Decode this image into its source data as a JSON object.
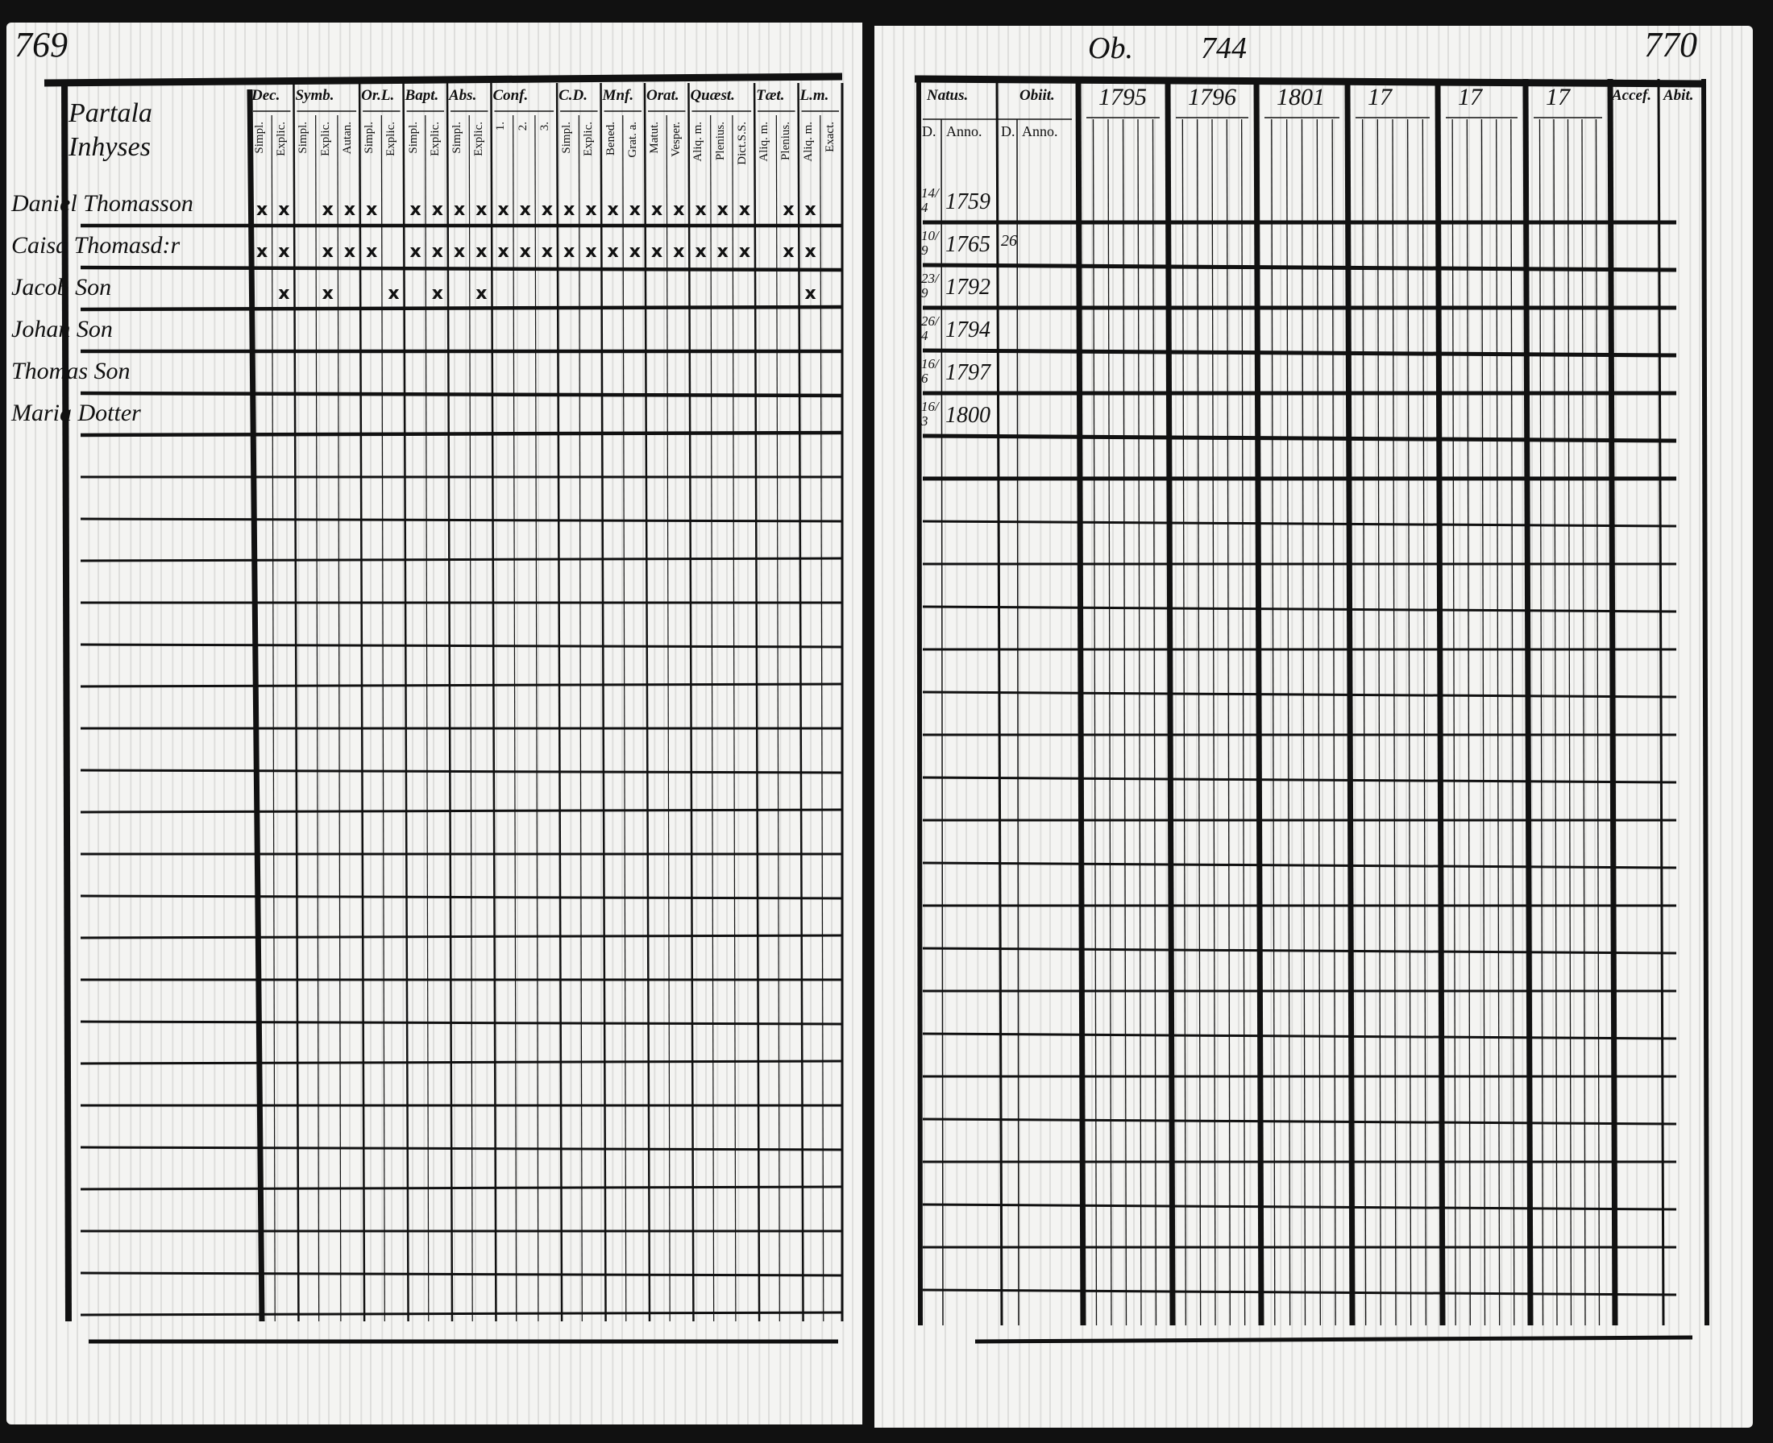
{
  "left_page": {
    "page_number": "769",
    "heading": "Partala Inhyses",
    "columns": [
      {
        "label": "Dec.",
        "sub": [
          "Simpl.",
          "Explic."
        ]
      },
      {
        "label": "Symb.",
        "sub": [
          "Simpl.",
          "Explic.",
          "Autan."
        ]
      },
      {
        "label": "Or.L.",
        "sub": [
          "Simpl.",
          "Explic."
        ]
      },
      {
        "label": "Bapt.",
        "sub": [
          "Simpl.",
          "Explic."
        ]
      },
      {
        "label": "Abs.",
        "sub": [
          "Simpl.",
          "Explic."
        ]
      },
      {
        "label": "Conf.",
        "sub": [
          "1.",
          "2.",
          "3."
        ]
      },
      {
        "label": "C.D.",
        "sub": [
          "Simpl.",
          "Explic."
        ]
      },
      {
        "label": "Mnf.",
        "sub": [
          "Bened.",
          "Grat. a."
        ]
      },
      {
        "label": "Orat.",
        "sub": [
          "Matut.",
          "Vesper."
        ]
      },
      {
        "label": "Quæst.",
        "sub": [
          "Aliq. m.",
          "Plenius.",
          "Dict.S.S."
        ]
      },
      {
        "label": "Tæt.",
        "sub": [
          "Aliq. m.",
          "Plenius."
        ]
      },
      {
        "label": "L.m.",
        "sub": [
          "Aliq. m.",
          "Exact."
        ]
      }
    ],
    "rows": [
      {
        "name": "Daniel Thomasson",
        "marks": [
          0,
          1,
          3,
          4,
          5,
          7,
          8,
          9,
          10,
          11,
          12,
          13,
          14,
          15,
          16,
          17,
          18,
          19,
          20,
          21,
          22,
          24,
          25
        ],
        "mark": "x"
      },
      {
        "name": "Caisa Thomasd:r",
        "marks": [
          0,
          1,
          3,
          4,
          5,
          7,
          8,
          9,
          10,
          11,
          12,
          13,
          14,
          15,
          16,
          17,
          18,
          19,
          20,
          21,
          22,
          24,
          25
        ],
        "mark": "x"
      },
      {
        "name": "Jacob Son",
        "marks": [
          1,
          3,
          6,
          8,
          10,
          25
        ],
        "mark": "x"
      },
      {
        "name": "Johan Son",
        "marks": [],
        "mark": "x"
      },
      {
        "name": "Thomas Son",
        "marks": [],
        "mark": "x"
      },
      {
        "name": "Maria Dotter",
        "marks": [],
        "mark": "x"
      }
    ]
  },
  "right_page": {
    "page_number": "770",
    "top_note": [
      "Ob.",
      "744"
    ],
    "natus": {
      "label": "Natus.",
      "day": "D.",
      "year": "Anno."
    },
    "obiit": {
      "label": "Obiit.",
      "day": "D.",
      "year": "Anno."
    },
    "year_columns": [
      "1795",
      "1796",
      "1801",
      "17",
      "17",
      "17"
    ],
    "accef": "Accef.",
    "abit": "Abit.",
    "rows": [
      {
        "day": "14/4",
        "year": "1759",
        "obiit_day": ""
      },
      {
        "day": "10/9",
        "year": "1765",
        "obiit_day": "26"
      },
      {
        "day": "23/9",
        "year": "1792",
        "obiit_day": ""
      },
      {
        "day": "26/4",
        "year": "1794",
        "obiit_day": ""
      },
      {
        "day": "16/6",
        "year": "1797",
        "obiit_day": ""
      },
      {
        "day": "16/3",
        "year": "1800",
        "obiit_day": ""
      }
    ]
  },
  "colors": {
    "ink": "#111111",
    "paper": "#f4f4f2",
    "background": "#111111"
  }
}
